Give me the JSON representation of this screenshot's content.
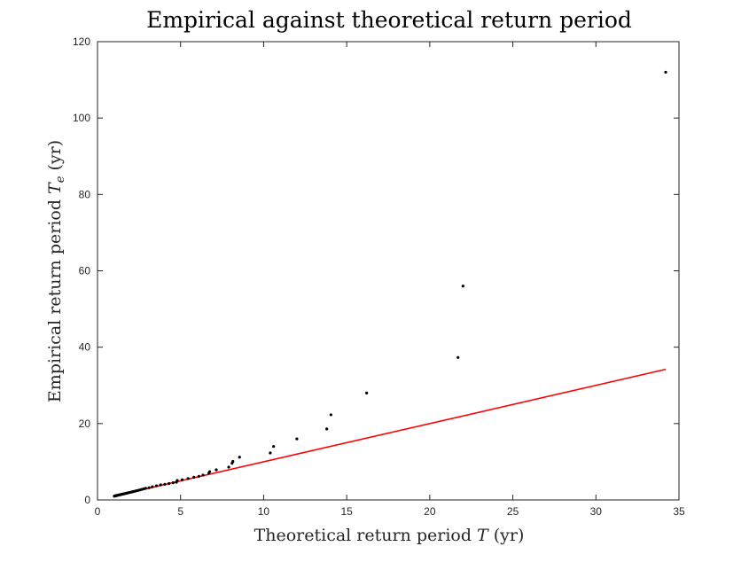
{
  "chart_data": {
    "type": "scatter",
    "title": "Empirical against theoretical return period",
    "xlabel": "Theoretical return period T (yr)",
    "xlabel_main": "Theoretical return period ",
    "xlabel_var": "T",
    "xlabel_unit": " (yr)",
    "ylabel_main": "Empirical return period ",
    "ylabel_var": "T",
    "ylabel_sub": "e",
    "ylabel_unit": " (yr)",
    "xlim": [
      0,
      35
    ],
    "ylim": [
      0,
      120
    ],
    "xticks": [
      0,
      5,
      10,
      15,
      20,
      25,
      30,
      35
    ],
    "yticks": [
      0,
      20,
      40,
      60,
      80,
      100,
      120
    ],
    "grid": false,
    "legend": "none",
    "colors": {
      "points": "#000000",
      "line": "#ff0000",
      "axes": "#262626"
    },
    "reference_line": {
      "x": [
        1,
        34.2
      ],
      "y": [
        1,
        34.2
      ]
    },
    "points": {
      "x": [
        1.01,
        1.03,
        1.05,
        1.08,
        1.1,
        1.13,
        1.16,
        1.19,
        1.22,
        1.26,
        1.3,
        1.34,
        1.38,
        1.42,
        1.47,
        1.52,
        1.57,
        1.62,
        1.68,
        1.74,
        1.8,
        1.87,
        1.94,
        2.01,
        2.09,
        2.17,
        2.26,
        2.35,
        2.45,
        2.55,
        2.66,
        2.78,
        2.9,
        3.1,
        3.3,
        3.55,
        3.8,
        4.05,
        4.3,
        4.55,
        4.75,
        4.8,
        5.1,
        5.45,
        5.8,
        6.1,
        6.35,
        6.7,
        6.75,
        7.15,
        7.9,
        8.1,
        8.15,
        8.55,
        10.4,
        10.6,
        12.0,
        13.8,
        14.05,
        16.2,
        21.7,
        22.0,
        34.2
      ],
      "y": [
        1.0,
        1.02,
        1.05,
        1.07,
        1.1,
        1.13,
        1.16,
        1.19,
        1.23,
        1.27,
        1.31,
        1.35,
        1.39,
        1.43,
        1.48,
        1.53,
        1.58,
        1.63,
        1.69,
        1.75,
        1.82,
        1.89,
        1.96,
        2.04,
        2.12,
        2.2,
        2.3,
        2.4,
        2.5,
        2.62,
        2.75,
        2.9,
        3.05,
        3.2,
        3.45,
        3.7,
        3.95,
        4.1,
        4.3,
        4.5,
        4.65,
        5.1,
        5.3,
        5.6,
        5.95,
        6.2,
        6.5,
        7.0,
        7.4,
        7.9,
        8.6,
        9.6,
        10.1,
        11.2,
        12.3,
        14.0,
        16.0,
        18.6,
        22.3,
        28.0,
        37.3,
        56.0,
        112.0
      ]
    }
  }
}
